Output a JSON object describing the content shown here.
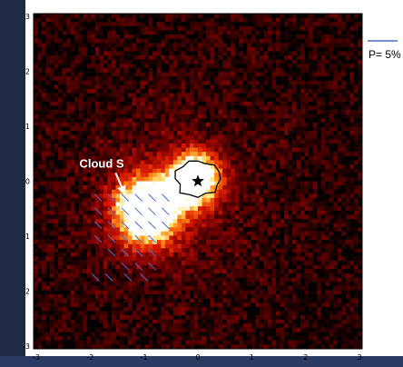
{
  "chart_data": {
    "type": "heatmap",
    "title": "",
    "xlabel": "",
    "ylabel": "",
    "xlim": [
      -3.05,
      3.05
    ],
    "ylim": [
      -3.05,
      3.05
    ],
    "x_ticks": [
      "-3",
      "-2",
      "-1",
      "0",
      "1",
      "2",
      "3"
    ],
    "y_ticks": [
      "3",
      "2",
      "1",
      "0",
      "-1",
      "-2",
      "-3"
    ],
    "colormap": "black-red-yellow-white",
    "sources": [
      {
        "x": -0.95,
        "y": -0.55,
        "sigma": 0.42,
        "peak": 1.0
      },
      {
        "x": -0.05,
        "y": 0.05,
        "sigma": 0.32,
        "peak": 0.95
      }
    ],
    "annotation": {
      "label": "Cloud S",
      "text_x": -2.2,
      "text_y": 0.25,
      "arrow_to_x": -1.35,
      "arrow_to_y": -0.25
    },
    "star_marker": {
      "x": 0.0,
      "y": 0.0
    },
    "contour": {
      "x": 0.0,
      "y": 0.05
    },
    "polarization_vectors": {
      "color": "#4a6cc9",
      "legend_label": "P= 5%",
      "vectors": [
        {
          "x": -1.85,
          "y": -0.3
        },
        {
          "x": -1.6,
          "y": -0.3
        },
        {
          "x": -1.35,
          "y": -0.3
        },
        {
          "x": -1.1,
          "y": -0.3
        },
        {
          "x": -0.85,
          "y": -0.3
        },
        {
          "x": -0.6,
          "y": -0.3
        },
        {
          "x": -1.85,
          "y": -0.55
        },
        {
          "x": -1.6,
          "y": -0.55
        },
        {
          "x": -1.35,
          "y": -0.55
        },
        {
          "x": -1.1,
          "y": -0.55
        },
        {
          "x": -0.85,
          "y": -0.55
        },
        {
          "x": -0.6,
          "y": -0.55
        },
        {
          "x": -1.85,
          "y": -0.8
        },
        {
          "x": -1.6,
          "y": -0.8
        },
        {
          "x": -1.35,
          "y": -0.8
        },
        {
          "x": -1.1,
          "y": -0.8
        },
        {
          "x": -0.85,
          "y": -0.8
        },
        {
          "x": -0.6,
          "y": -0.8
        },
        {
          "x": -1.85,
          "y": -1.05
        },
        {
          "x": -1.6,
          "y": -1.05
        },
        {
          "x": -1.35,
          "y": -1.05
        },
        {
          "x": -1.1,
          "y": -1.05
        },
        {
          "x": -0.85,
          "y": -1.05
        },
        {
          "x": -1.6,
          "y": -1.3
        },
        {
          "x": -1.35,
          "y": -1.3
        },
        {
          "x": -1.1,
          "y": -1.3
        },
        {
          "x": -0.85,
          "y": -1.3
        },
        {
          "x": -1.35,
          "y": -1.55
        },
        {
          "x": -1.1,
          "y": -1.55
        },
        {
          "x": -0.85,
          "y": -1.55
        },
        {
          "x": -1.9,
          "y": -1.75
        },
        {
          "x": -1.65,
          "y": -1.75
        },
        {
          "x": -1.3,
          "y": -1.75
        },
        {
          "x": -1.0,
          "y": -1.75
        }
      ]
    }
  }
}
